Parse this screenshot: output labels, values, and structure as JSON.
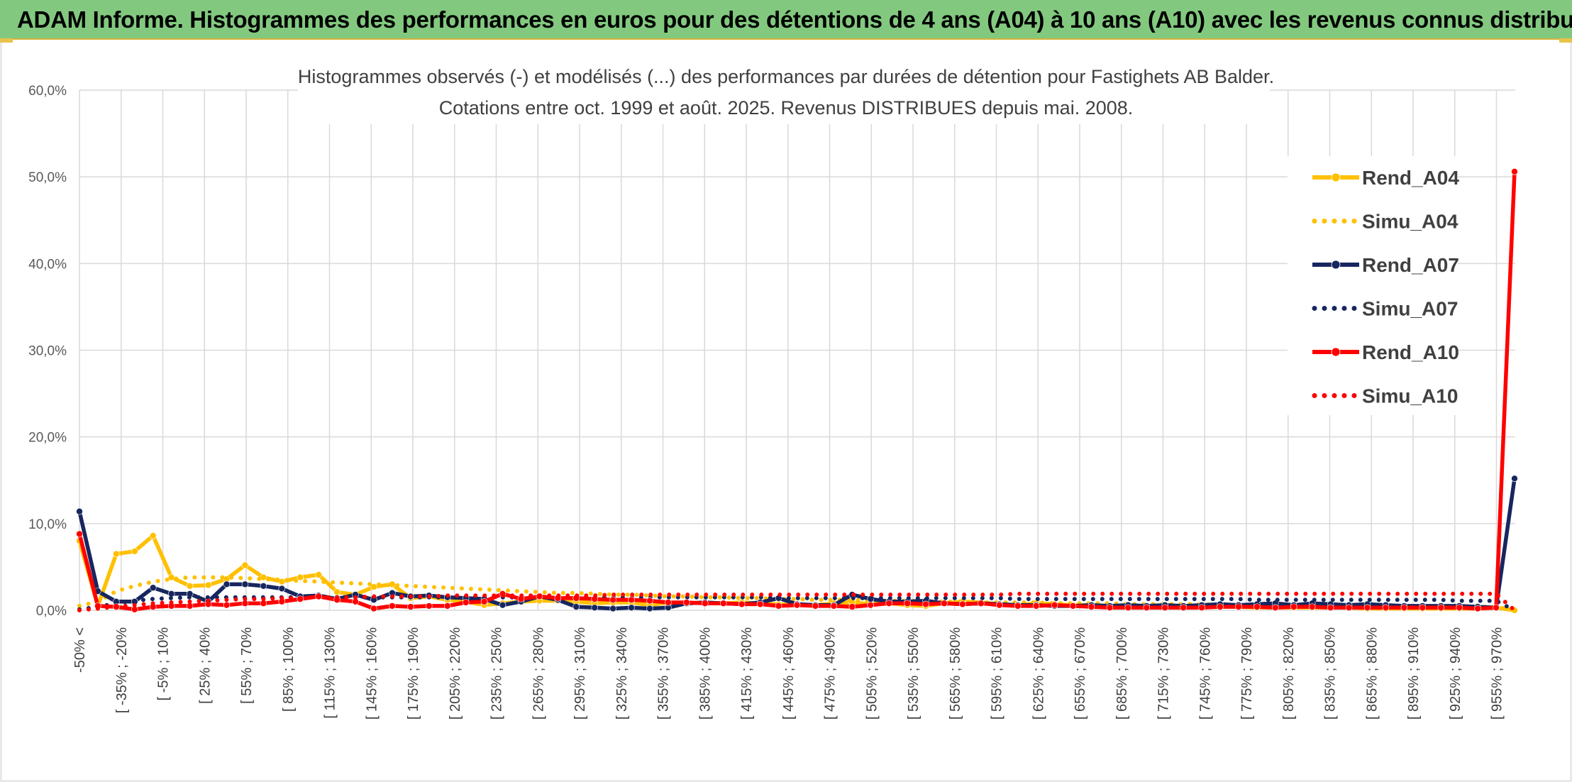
{
  "banner": {
    "title": "ADAM Informe. Histogrammes des performances en euros pour des détentions de 4 ans (A04) à 10 ans (A10) avec les revenus connus distribués"
  },
  "colors": {
    "banner_bg": "#82c97f",
    "A04": "#ffc000",
    "A07": "#17265e",
    "A10": "#ff0000",
    "grid": "#d9d9d9"
  },
  "chart_data": {
    "type": "line",
    "title": [
      "Histogrammes observés (-) et modélisés (...) des performances par durées de détention pour Fastighets AB Balder.",
      "Cotations entre oct. 1999 et août. 2025. Revenus DISTRIBUES depuis mai. 2008."
    ],
    "xlabel": "",
    "ylabel": "",
    "ylim": [
      0,
      60
    ],
    "yticks": [
      "0,0%",
      "10,0%",
      "20,0%",
      "30,0%",
      "40,0%",
      "50,0%",
      "60,0%"
    ],
    "grid": true,
    "legend_position": "right",
    "x_labels": [
      "-50% <",
      "[ -35% ; -20%",
      "[ -5% ; 10%",
      "[ 25% ; 40%",
      "[ 55% ; 70%",
      "[ 85% ; 100%",
      "[ 115% ; 130%",
      "[ 145% ; 160%",
      "[ 175% ; 190%",
      "[ 205% ; 220%",
      "[ 235% ; 250%",
      "[ 265% ; 280%",
      "[ 295% ; 310%",
      "[ 325% ; 340%",
      "[ 355% ; 370%",
      "[ 385% ; 400%",
      "[ 415% ; 430%",
      "[ 445% ; 460%",
      "[ 475% ; 490%",
      "[ 505% ; 520%",
      "[ 535% ; 550%",
      "[ 565% ; 580%",
      "[ 595% ; 610%",
      "[ 625% ; 640%",
      "[ 655% ; 670%",
      "[ 685% ; 700%",
      "[ 715% ; 730%",
      "[ 745% ; 760%",
      "[ 775% ; 790%",
      "[ 805% ; 820%",
      "[ 835% ; 850%",
      "[ 865% ; 880%",
      "[ 895% ; 910%",
      "[ 925% ; 940%",
      "[ 955% ; 970%"
    ],
    "series": [
      {
        "name": "Rend_A04",
        "style": "solid",
        "color": "#ffc000",
        "values": [
          8.0,
          0.5,
          6.5,
          6.8,
          8.6,
          3.8,
          2.8,
          2.9,
          3.6,
          5.2,
          3.8,
          3.3,
          3.8,
          4.1,
          2.1,
          1.8,
          2.7,
          3.0,
          1.4,
          1.6,
          1.2,
          1.0,
          0.6,
          0.8,
          1.0,
          1.1,
          1.1,
          1.0,
          0.8,
          0.9,
          0.9,
          0.6,
          0.9,
          0.8,
          0.9,
          0.8,
          0.9,
          0.8,
          0.7,
          0.6,
          0.6,
          0.8,
          0.9,
          0.7,
          0.8,
          0.6,
          0.5,
          0.8,
          1.0,
          0.9,
          0.7,
          0.6,
          0.8,
          0.7,
          0.6,
          0.6,
          0.5,
          0.4,
          0.5,
          0.4,
          0.3,
          0.3,
          0.5,
          0.4,
          0.3,
          0.3,
          0.3,
          0.3,
          0.3,
          0.3,
          0.2,
          0.2,
          0.2,
          0.2,
          0.2,
          0.2,
          0.2,
          0.3,
          0.0
        ]
      },
      {
        "name": "Simu_A04",
        "style": "dotted",
        "color": "#ffc000",
        "values": [
          0.5,
          1.0,
          2.2,
          2.8,
          3.3,
          3.6,
          3.8,
          3.8,
          3.8,
          3.7,
          3.6,
          3.5,
          3.4,
          3.3,
          3.2,
          3.1,
          3.0,
          2.9,
          2.8,
          2.7,
          2.6,
          2.5,
          2.4,
          2.3,
          2.2,
          2.1,
          2.0,
          2.0,
          1.9,
          1.8,
          1.8,
          1.7,
          1.6,
          1.6,
          1.5,
          1.5,
          1.4,
          1.4,
          1.3,
          1.3,
          1.2,
          1.2,
          1.2,
          1.1,
          1.1,
          1.1,
          1.0,
          1.0,
          1.0,
          0.9,
          0.9,
          0.9,
          0.9,
          0.8,
          0.8,
          0.8,
          0.8,
          0.7,
          0.7,
          0.7,
          0.7,
          0.7,
          0.6,
          0.6,
          0.6,
          0.6,
          0.6,
          0.5,
          0.5,
          0.5,
          0.5,
          0.5,
          0.5,
          0.5,
          0.4,
          0.4,
          0.4,
          0.4,
          0.0
        ]
      },
      {
        "name": "Rend_A07",
        "style": "solid",
        "color": "#17265e",
        "values": [
          11.4,
          2.2,
          1.0,
          1.0,
          2.6,
          1.9,
          1.9,
          1.0,
          3.0,
          3.0,
          2.8,
          2.5,
          1.6,
          1.7,
          1.3,
          1.8,
          1.2,
          2.0,
          1.6,
          1.7,
          1.5,
          1.4,
          1.3,
          0.6,
          1.0,
          1.6,
          1.2,
          0.4,
          0.3,
          0.2,
          0.3,
          0.2,
          0.3,
          0.8,
          0.9,
          0.8,
          0.7,
          0.9,
          1.4,
          0.7,
          0.6,
          0.6,
          1.8,
          1.3,
          1.0,
          1.0,
          1.1,
          0.8,
          0.7,
          0.8,
          0.7,
          0.6,
          0.6,
          0.5,
          0.5,
          0.6,
          0.5,
          0.6,
          0.5,
          0.6,
          0.5,
          0.6,
          0.7,
          0.6,
          0.7,
          0.8,
          0.6,
          0.8,
          0.7,
          0.6,
          0.7,
          0.6,
          0.5,
          0.5,
          0.5,
          0.5,
          0.4,
          0.3,
          15.2
        ]
      },
      {
        "name": "Simu_A07",
        "style": "dotted",
        "color": "#17265e",
        "values": [
          0.1,
          0.4,
          0.8,
          1.1,
          1.3,
          1.4,
          1.5,
          1.5,
          1.5,
          1.5,
          1.5,
          1.5,
          1.5,
          1.5,
          1.5,
          1.5,
          1.5,
          1.5,
          1.5,
          1.5,
          1.5,
          1.5,
          1.5,
          1.5,
          1.5,
          1.5,
          1.5,
          1.5,
          1.5,
          1.5,
          1.5,
          1.5,
          1.5,
          1.5,
          1.5,
          1.5,
          1.5,
          1.5,
          1.4,
          1.4,
          1.4,
          1.4,
          1.4,
          1.4,
          1.4,
          1.4,
          1.4,
          1.4,
          1.4,
          1.4,
          1.4,
          1.3,
          1.3,
          1.3,
          1.3,
          1.3,
          1.3,
          1.3,
          1.3,
          1.3,
          1.3,
          1.3,
          1.3,
          1.3,
          1.2,
          1.2,
          1.2,
          1.2,
          1.2,
          1.2,
          1.2,
          1.2,
          1.2,
          1.2,
          1.2,
          1.1,
          1.1,
          1.1,
          0.0
        ]
      },
      {
        "name": "Rend_A10",
        "style": "solid",
        "color": "#ff0000",
        "values": [
          8.8,
          0.5,
          0.4,
          0.1,
          0.4,
          0.5,
          0.5,
          0.7,
          0.6,
          0.8,
          0.8,
          1.0,
          1.3,
          1.6,
          1.2,
          1.0,
          0.2,
          0.5,
          0.4,
          0.5,
          0.5,
          0.9,
          1.0,
          1.9,
          1.3,
          1.6,
          1.4,
          1.4,
          1.3,
          1.2,
          1.2,
          1.1,
          0.9,
          0.9,
          0.8,
          0.8,
          0.7,
          0.7,
          0.5,
          0.6,
          0.5,
          0.5,
          0.4,
          0.6,
          0.8,
          0.8,
          0.7,
          0.8,
          0.7,
          0.8,
          0.6,
          0.5,
          0.5,
          0.6,
          0.5,
          0.4,
          0.3,
          0.3,
          0.3,
          0.3,
          0.3,
          0.3,
          0.4,
          0.4,
          0.4,
          0.3,
          0.4,
          0.4,
          0.3,
          0.3,
          0.3,
          0.3,
          0.3,
          0.3,
          0.3,
          0.3,
          0.2,
          0.3,
          50.6
        ]
      },
      {
        "name": "Simu_A10",
        "style": "dotted",
        "color": "#ff0000",
        "values": [
          0.0,
          0.2,
          0.4,
          0.6,
          0.8,
          0.9,
          1.0,
          1.1,
          1.2,
          1.3,
          1.3,
          1.4,
          1.4,
          1.5,
          1.5,
          1.5,
          1.6,
          1.6,
          1.6,
          1.6,
          1.7,
          1.7,
          1.7,
          1.7,
          1.7,
          1.7,
          1.7,
          1.7,
          1.7,
          1.8,
          1.8,
          1.8,
          1.8,
          1.8,
          1.8,
          1.8,
          1.8,
          1.8,
          1.8,
          1.8,
          1.8,
          1.8,
          1.8,
          1.8,
          1.8,
          1.8,
          1.8,
          1.8,
          1.8,
          1.8,
          1.8,
          1.9,
          1.9,
          1.9,
          1.9,
          1.9,
          1.9,
          1.9,
          1.9,
          1.9,
          1.9,
          1.9,
          1.9,
          1.9,
          1.9,
          1.9,
          1.9,
          1.9,
          1.9,
          1.9,
          1.9,
          1.9,
          1.9,
          1.9,
          1.9,
          1.9,
          1.9,
          1.9,
          0.0
        ]
      }
    ]
  }
}
